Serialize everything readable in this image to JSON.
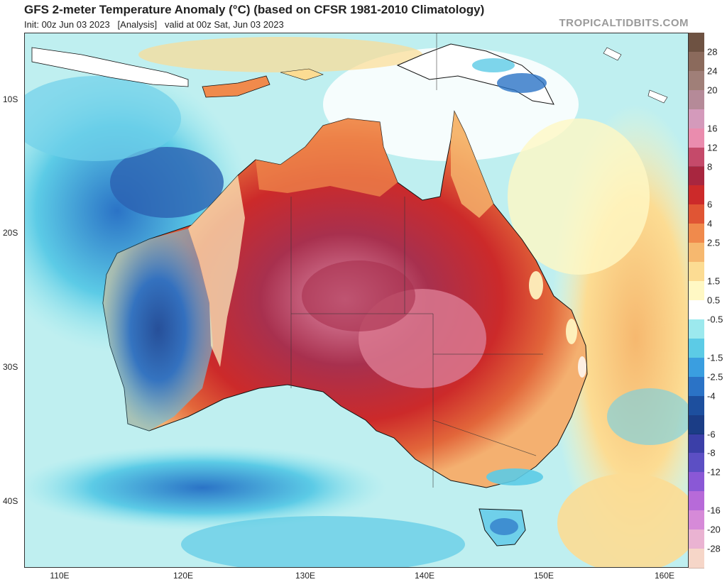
{
  "header": {
    "title": "GFS 2-meter Temperature Anomaly (°C) (based on CFSR 1981-2010 Climatology)",
    "subtitle": "Init: 00z Jun 03 2023   [Analysis]   valid at 00z Sat, Jun 03 2023",
    "credit": "TROPICALTIDBITS.COM"
  },
  "map": {
    "region": "Australia",
    "lat_labels": [
      "10S",
      "20S",
      "30S",
      "40S"
    ],
    "lon_labels": [
      "110E",
      "120E",
      "130E",
      "140E",
      "150E",
      "160E"
    ]
  },
  "colorbar": {
    "labels": [
      "28",
      "24",
      "20",
      "16",
      "12",
      "8",
      "6",
      "4",
      "2.5",
      "1.5",
      "0.5",
      "-0.5",
      "-1.5",
      "-2.5",
      "-4",
      "-6",
      "-8",
      "-12",
      "-16",
      "-20",
      "-28"
    ],
    "colors": [
      "#6e5242",
      "#8b6a5c",
      "#a07f78",
      "#b58a98",
      "#d49abb",
      "#ea8cae",
      "#c54a6a",
      "#a8263f",
      "#cc2a2a",
      "#e05534",
      "#f08a4c",
      "#f6b86f",
      "#fcdc93",
      "#fff8c4",
      "#ffffff",
      "#9ce9ee",
      "#5ccbe6",
      "#3a9ee0",
      "#2b73c6",
      "#1d4f9e",
      "#1b3d86",
      "#3b3fa8",
      "#5c4fc4",
      "#8a58d6",
      "#b76ad9",
      "#d68ad8",
      "#eab3d2",
      "#f6d6c8"
    ]
  }
}
